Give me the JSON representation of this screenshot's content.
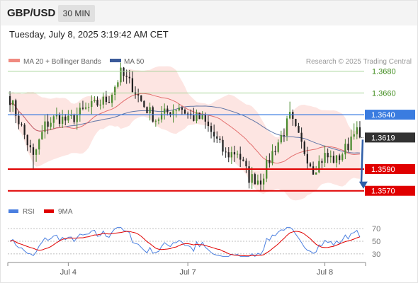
{
  "header": {
    "symbol": "GBP/USD",
    "interval": "30 MIN",
    "timestamp": "Tuesday, July 8, 2025 3:19:42 AM CET"
  },
  "legend": {
    "ma20_label": "MA 20 + Bollinger Bands",
    "ma50_label": "MA 50",
    "credit": "Research © 2025 Trading Central",
    "rsi_label": "RSI",
    "rsi_ma_label": "9MA"
  },
  "colors": {
    "bull_candle": "#4a8a2e",
    "bear_candle": "#222222",
    "ma20": "#e06060",
    "bollinger_fill": "#fde0dd",
    "ma50": "#3a5a99",
    "support": "#e00000",
    "resistance_line": "#3a7ce0",
    "target_line": "#a8d49a",
    "target_label": "#3d8a1a",
    "current_price_label": "#333333",
    "forecast_arrow": "#2f5ea8",
    "rsi_line": "#4a7fe0",
    "rsi_ma_line": "#e00000"
  },
  "chart_data": [
    {
      "type": "candlestick",
      "title": "GBP/USD",
      "ylim": [
        1.3562,
        1.3683
      ],
      "x_ticks": [
        "Jul 4",
        "Jul 7",
        "Jul 8"
      ],
      "levels": [
        {
          "label": "1.3680",
          "value": 1.368,
          "kind": "target"
        },
        {
          "label": "1.3660",
          "value": 1.366,
          "kind": "target"
        },
        {
          "label": "1.3640",
          "value": 1.364,
          "kind": "resistance"
        },
        {
          "label": "1.3619",
          "value": 1.3619,
          "kind": "current"
        },
        {
          "label": "1.3590",
          "value": 1.359,
          "kind": "support"
        },
        {
          "label": "1.3570",
          "value": 1.357,
          "kind": "support"
        }
      ],
      "forecast_target": 1.357,
      "anchors": [
        [
          0,
          1.3655
        ],
        [
          4,
          1.3628
        ],
        [
          8,
          1.36
        ],
        [
          12,
          1.363
        ],
        [
          16,
          1.3638
        ],
        [
          20,
          1.3634
        ],
        [
          26,
          1.3645
        ],
        [
          30,
          1.365
        ],
        [
          34,
          1.3655
        ],
        [
          38,
          1.3678
        ],
        [
          42,
          1.3666
        ],
        [
          46,
          1.3648
        ],
        [
          50,
          1.3636
        ],
        [
          54,
          1.3642
        ],
        [
          58,
          1.3648
        ],
        [
          62,
          1.3638
        ],
        [
          66,
          1.3636
        ],
        [
          70,
          1.362
        ],
        [
          74,
          1.3603
        ],
        [
          78,
          1.3606
        ],
        [
          82,
          1.3582
        ],
        [
          86,
          1.358
        ],
        [
          90,
          1.3605
        ],
        [
          94,
          1.3625
        ],
        [
          96,
          1.3638
        ],
        [
          100,
          1.3612
        ],
        [
          104,
          1.359
        ],
        [
          108,
          1.3602
        ],
        [
          112,
          1.3598
        ],
        [
          116,
          1.3612
        ],
        [
          118,
          1.3628
        ],
        [
          120,
          1.3619
        ]
      ],
      "moving_averages": [
        {
          "name": "MA 20 + Bollinger Bands",
          "kind": "ma20"
        },
        {
          "name": "MA 50",
          "kind": "ma50"
        }
      ]
    },
    {
      "type": "line",
      "title": "RSI",
      "ylim": [
        22,
        78
      ],
      "y_ticks": [
        70,
        50,
        30
      ],
      "series": [
        {
          "name": "RSI"
        },
        {
          "name": "9MA"
        }
      ]
    }
  ]
}
